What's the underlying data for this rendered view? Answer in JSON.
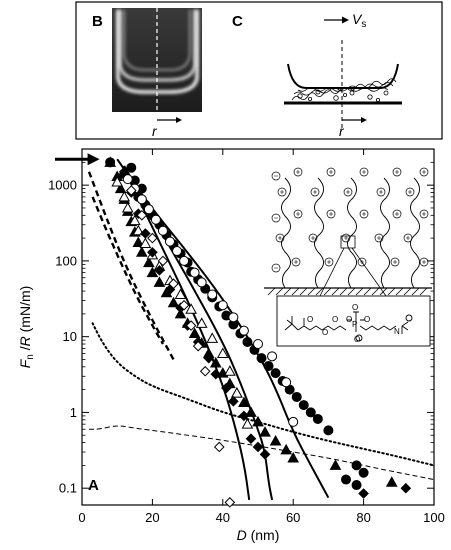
{
  "panels": {
    "b": {
      "label": "B",
      "axis_label": "r"
    },
    "c": {
      "label": "C",
      "velocity_label": "V",
      "velocity_sub": "s",
      "axis_label": "r"
    },
    "a": {
      "label": "A"
    }
  },
  "chart_data": {
    "type": "scatter",
    "panel": "A",
    "xlabel": "D (nm)",
    "ylabel": "Fn/R (mN/m)",
    "xlim": [
      0,
      100
    ],
    "ylim": [
      0.06,
      3000
    ],
    "yscale": "log",
    "xticks": [
      0,
      20,
      40,
      60,
      80,
      100
    ],
    "yticks": [
      0.1,
      1,
      10,
      100,
      1000
    ],
    "ytick_labels": [
      "0.1",
      "1",
      "10",
      "100",
      "1000"
    ],
    "arrow_at": {
      "x": 5,
      "y": 2200
    },
    "series": [
      {
        "marker": "filled-circle",
        "points": [
          [
            8,
            2000
          ],
          [
            14,
            1700
          ],
          [
            12,
            1400
          ],
          [
            15,
            1150
          ],
          [
            17,
            900
          ],
          [
            16,
            700
          ],
          [
            18,
            550
          ],
          [
            20,
            400
          ],
          [
            22,
            300
          ],
          [
            24,
            220
          ],
          [
            26,
            165
          ],
          [
            28,
            125
          ],
          [
            30,
            95
          ],
          [
            31,
            72
          ],
          [
            33,
            57
          ],
          [
            35,
            43
          ],
          [
            37,
            33
          ],
          [
            39,
            25
          ],
          [
            41,
            19
          ],
          [
            43,
            14.5
          ],
          [
            45,
            11
          ],
          [
            47,
            8.5
          ],
          [
            49,
            6.7
          ],
          [
            51,
            5.2
          ],
          [
            53,
            4.1
          ],
          [
            55,
            3.3
          ],
          [
            57,
            2.6
          ],
          [
            59,
            2
          ],
          [
            61,
            1.6
          ],
          [
            63,
            1.25
          ],
          [
            65,
            1
          ],
          [
            67,
            0.82
          ],
          [
            70,
            0.58
          ],
          [
            78,
            0.2
          ],
          [
            80,
            0.16
          ],
          [
            75,
            0.13
          ],
          [
            78,
            0.11
          ]
        ]
      },
      {
        "marker": "open-circle",
        "points": [
          [
            13,
            1200
          ],
          [
            15,
            900
          ],
          [
            17,
            650
          ],
          [
            19,
            480
          ],
          [
            21,
            350
          ],
          [
            23,
            250
          ],
          [
            25,
            180
          ],
          [
            27,
            135
          ],
          [
            29,
            100
          ],
          [
            32,
            70
          ],
          [
            34,
            52
          ],
          [
            37,
            36
          ],
          [
            40,
            26
          ],
          [
            43,
            18
          ],
          [
            46,
            12
          ],
          [
            50,
            8
          ],
          [
            54,
            5.5
          ],
          [
            58,
            2.5
          ],
          [
            60,
            0.75
          ]
        ]
      },
      {
        "marker": "filled-triangle",
        "points": [
          [
            8,
            2000
          ],
          [
            10,
            1300
          ],
          [
            11,
            900
          ],
          [
            12,
            650
          ],
          [
            13,
            450
          ],
          [
            14,
            330
          ],
          [
            15,
            240
          ],
          [
            16,
            175
          ],
          [
            17,
            130
          ],
          [
            19,
            95
          ],
          [
            20,
            70
          ],
          [
            22,
            52
          ],
          [
            24,
            38
          ],
          [
            26,
            28
          ],
          [
            28,
            20
          ],
          [
            30,
            15
          ],
          [
            32,
            11
          ],
          [
            34,
            8.2
          ],
          [
            36,
            6
          ],
          [
            38,
            4.5
          ],
          [
            40,
            3.3
          ],
          [
            42,
            2.4
          ],
          [
            44,
            1.8
          ],
          [
            46,
            1.35
          ],
          [
            48,
            1
          ],
          [
            50,
            0.75
          ],
          [
            52,
            0.55
          ],
          [
            55,
            0.42
          ],
          [
            58,
            0.32
          ],
          [
            60,
            0.25
          ],
          [
            72,
            0.2
          ],
          [
            88,
            0.12
          ]
        ]
      },
      {
        "marker": "open-triangle",
        "points": [
          [
            10,
            1100
          ],
          [
            12,
            700
          ],
          [
            13,
            500
          ],
          [
            15,
            340
          ],
          [
            16,
            250
          ],
          [
            18,
            170
          ],
          [
            20,
            120
          ],
          [
            22,
            85
          ],
          [
            25,
            55
          ],
          [
            28,
            36
          ],
          [
            31,
            23
          ],
          [
            34,
            15
          ],
          [
            37,
            9.5
          ],
          [
            40,
            6
          ],
          [
            42,
            3.5
          ],
          [
            44,
            1.8
          ],
          [
            47,
            0.7
          ]
        ]
      },
      {
        "marker": "filled-diamond",
        "points": [
          [
            12,
            1500
          ],
          [
            14,
            800
          ],
          [
            16,
            420
          ],
          [
            18,
            230
          ],
          [
            20,
            130
          ],
          [
            22,
            75
          ],
          [
            25,
            42
          ],
          [
            28,
            24
          ],
          [
            30,
            14
          ],
          [
            33,
            8.5
          ],
          [
            36,
            5.2
          ],
          [
            38,
            3.2
          ],
          [
            41,
            2.1
          ],
          [
            43,
            1.4
          ],
          [
            46,
            0.9
          ],
          [
            48,
            0.45
          ],
          [
            50,
            0.35
          ],
          [
            52,
            0.28
          ],
          [
            80,
            0.085
          ],
          [
            92,
            0.1
          ]
        ]
      },
      {
        "marker": "open-diamond",
        "points": [
          [
            14,
            850
          ],
          [
            17,
            400
          ],
          [
            20,
            200
          ],
          [
            23,
            100
          ],
          [
            26,
            50
          ],
          [
            29,
            26
          ],
          [
            31,
            14
          ],
          [
            33,
            7.5
          ],
          [
            35,
            3.5
          ],
          [
            39,
            0.35
          ],
          [
            42,
            0.065
          ]
        ]
      }
    ],
    "curves": [
      {
        "style": "solid",
        "points": [
          [
            10,
            2200
          ],
          [
            20,
            480
          ],
          [
            30,
            130
          ],
          [
            40,
            32
          ],
          [
            50,
            6
          ],
          [
            55,
            2.1
          ],
          [
            60,
            0.55
          ],
          [
            65,
            0.2
          ],
          [
            70,
            0.075
          ]
        ]
      },
      {
        "style": "solid",
        "points": [
          [
            12,
            1800
          ],
          [
            20,
            380
          ],
          [
            30,
            60
          ],
          [
            40,
            8.5
          ],
          [
            45,
            2.5
          ],
          [
            50,
            0.6
          ],
          [
            52,
            0.3
          ],
          [
            53,
            0.12
          ],
          [
            54,
            0.07
          ]
        ]
      },
      {
        "style": "solid",
        "points": [
          [
            12,
            1600
          ],
          [
            20,
            280
          ],
          [
            30,
            30
          ],
          [
            35,
            9
          ],
          [
            40,
            2.3
          ],
          [
            43,
            0.8
          ],
          [
            46,
            0.22
          ],
          [
            47.5,
            0.07
          ]
        ]
      },
      {
        "style": "thick-dashed",
        "points": [
          [
            2,
            1500
          ],
          [
            6,
            480
          ],
          [
            10,
            160
          ],
          [
            14,
            60
          ],
          [
            18,
            25
          ],
          [
            22,
            11
          ],
          [
            26,
            5
          ]
        ]
      },
      {
        "style": "thick-dashed",
        "points": [
          [
            3,
            700
          ],
          [
            7,
            250
          ],
          [
            11,
            95
          ],
          [
            15,
            38
          ],
          [
            19,
            17
          ],
          [
            23,
            8
          ]
        ]
      },
      {
        "style": "dotted",
        "points": [
          [
            3,
            15
          ],
          [
            6,
            8
          ],
          [
            10,
            4.5
          ],
          [
            15,
            3
          ],
          [
            20,
            2.2
          ],
          [
            30,
            1.5
          ],
          [
            40,
            1
          ],
          [
            50,
            0.75
          ],
          [
            60,
            0.55
          ],
          [
            70,
            0.42
          ],
          [
            80,
            0.33
          ],
          [
            90,
            0.26
          ],
          [
            100,
            0.2
          ]
        ]
      },
      {
        "style": "thin-dashed",
        "points": [
          [
            2,
            0.6
          ],
          [
            5,
            0.6
          ],
          [
            10,
            0.68
          ],
          [
            15,
            0.62
          ],
          [
            20,
            0.58
          ],
          [
            30,
            0.5
          ],
          [
            40,
            0.43
          ],
          [
            50,
            0.36
          ],
          [
            60,
            0.3
          ],
          [
            70,
            0.25
          ],
          [
            80,
            0.2
          ],
          [
            90,
            0.16
          ],
          [
            100,
            0.13
          ]
        ]
      }
    ]
  }
}
